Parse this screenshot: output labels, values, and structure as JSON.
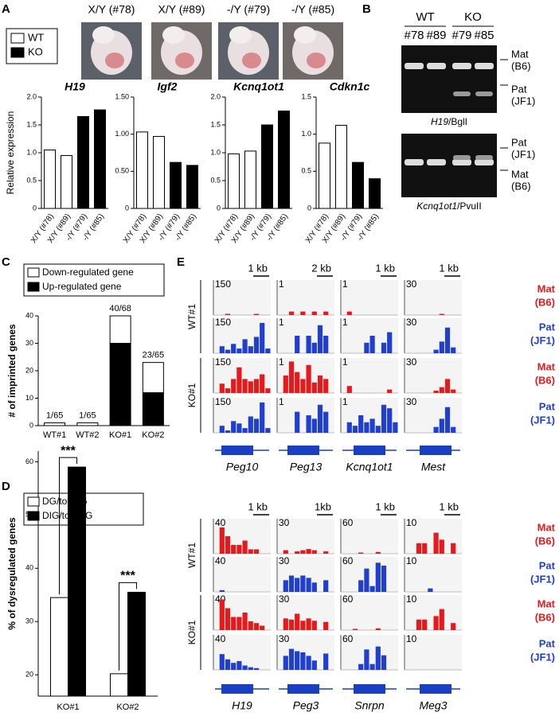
{
  "panel_labels": [
    "A",
    "B",
    "C",
    "D",
    "E"
  ],
  "embryos": [
    "X/Y (#78)",
    "X/Y (#89)",
    "-/Y (#79)",
    "-/Y (#85)"
  ],
  "legend_a": [
    {
      "name": "WT",
      "color": "#ffffff"
    },
    {
      "name": "KO",
      "color": "#000000"
    }
  ],
  "chart_data": [
    {
      "type": "bar",
      "title": "H19",
      "ylabel": "Relative expression",
      "categories": [
        "X/Y (#78)",
        "X/Y (#89)",
        "-/Y (#79)",
        "-/Y (#85)"
      ],
      "values": [
        1.05,
        0.95,
        1.65,
        1.77
      ],
      "colors": [
        "#ffffff",
        "#ffffff",
        "#000000",
        "#000000"
      ],
      "ylim": [
        0,
        2
      ],
      "yticks": [
        0,
        0.5,
        {
          "value": 1,
          "label": "1.0"
        },
        1.5,
        {
          "value": 2,
          "label": "2.0"
        }
      ]
    },
    {
      "type": "bar",
      "title": "Igf2",
      "categories": [
        "X/Y (#78)",
        "X/Y (#89)",
        "-/Y (#79)",
        "-/Y (#85)"
      ],
      "values": [
        1.03,
        0.97,
        0.62,
        0.58
      ],
      "colors": [
        "#ffffff",
        "#ffffff",
        "#000000",
        "#000000"
      ],
      "ylim": [
        0,
        1.5
      ],
      "yticks": [
        0,
        {
          "value": 0.5,
          "label": "0.50"
        },
        {
          "value": 1,
          "label": "1.00"
        },
        {
          "value": 1.5,
          "label": "1.50"
        }
      ]
    },
    {
      "type": "bar",
      "title": "Kcnq1ot1",
      "categories": [
        "X/Y (#78)",
        "X/Y (#89)",
        "-/Y (#79)",
        "-/Y (#85)"
      ],
      "values": [
        0.98,
        1.03,
        1.5,
        1.75
      ],
      "colors": [
        "#ffffff",
        "#ffffff",
        "#000000",
        "#000000"
      ],
      "ylim": [
        0,
        2
      ],
      "yticks": [
        0,
        0.5,
        {
          "value": 1,
          "label": "1.0"
        },
        1.5,
        {
          "value": 2,
          "label": "2.0"
        }
      ]
    },
    {
      "type": "bar",
      "title": "Cdkn1c",
      "categories": [
        "X/Y (#78)",
        "X/Y (#89)",
        "-/Y (#79)",
        "-/Y (#85)"
      ],
      "values": [
        0.88,
        1.12,
        0.62,
        0.4
      ],
      "colors": [
        "#ffffff",
        "#ffffff",
        "#000000",
        "#000000"
      ],
      "ylim": [
        0,
        1.5
      ],
      "yticks": [
        0,
        0.5,
        {
          "value": 1,
          "label": "1.0"
        },
        1.5
      ]
    },
    {
      "type": "stacked_bar",
      "ylabel": "# of imprinted genes",
      "categories": [
        "WT#1",
        "WT#2",
        "KO#1",
        "KO#2"
      ],
      "series": [
        {
          "name": "Up-regulated gene",
          "color": "#000000",
          "values": [
            0,
            0,
            30,
            12
          ]
        },
        {
          "name": "Down-regulated gene",
          "color": "#ffffff",
          "values": [
            1,
            1,
            10,
            11
          ]
        }
      ],
      "annotations": [
        "1/65",
        "1/65",
        "40/68",
        "23/65"
      ],
      "ylim": [
        0,
        40
      ],
      "yticks": [
        0,
        10,
        20,
        30,
        40
      ]
    },
    {
      "type": "grouped_bar",
      "ylabel": "% of dysregulated genes",
      "categories": [
        "KO#1",
        "KO#2"
      ],
      "series": [
        {
          "name": "DG/total G",
          "color": "#ffffff",
          "values": [
            34.5,
            20.2
          ]
        },
        {
          "name": "DIG/total IG",
          "color": "#000000",
          "values": [
            59,
            35.5
          ]
        }
      ],
      "annotations": [
        "***",
        "***"
      ],
      "ylim": [
        16,
        62
      ],
      "yticks": [
        20,
        30,
        40,
        50,
        60
      ]
    }
  ],
  "gel": {
    "groups": [
      "WT",
      "KO"
    ],
    "lanes": [
      "#78",
      "#89",
      "#79",
      "#85"
    ],
    "blots": [
      {
        "gene": "H19",
        "enzyme": "/BglI",
        "markers": [
          [
            "Mat",
            "(B6)"
          ],
          [
            "Pat",
            "(JF1)"
          ]
        ]
      },
      {
        "gene": "Kcnq1ot1",
        "enzyme": "/PvuII",
        "markers": [
          [
            "Pat",
            "(JF1)"
          ],
          [
            "Mat",
            "(B6)"
          ]
        ]
      }
    ]
  },
  "genome_tracks": {
    "track_types": [
      {
        "lines": [
          "Mat",
          "(B6)"
        ],
        "color": "#e41a1c"
      },
      {
        "lines": [
          "Pat",
          "(JF1)"
        ],
        "color": "#1f3fcc"
      }
    ],
    "samples": [
      "WT#1",
      "KO#1"
    ],
    "blocks": [
      {
        "genes": [
          {
            "name": "Peg10",
            "scale": "1 kb",
            "ymax": 150,
            "coverage": [
              [
                0,
                0,
                5,
                0,
                0,
                0,
                0,
                5,
                0,
                0
              ],
              [
                0,
                30,
                15,
                40,
                20,
                60,
                30,
                70,
                130,
                20
              ],
              [
                0,
                40,
                20,
                60,
                110,
                60,
                50,
                60,
                80,
                20
              ],
              [
                0,
                30,
                10,
                50,
                40,
                20,
                70,
                60,
                130,
                20
              ]
            ]
          },
          {
            "name": "Peg13",
            "scale": "2 kb",
            "ymax": 1,
            "coverage": [
              [
                0,
                0,
                0.1,
                0,
                0.1,
                0,
                0.1,
                0,
                0.1,
                0
              ],
              [
                0,
                0,
                0,
                0.5,
                0,
                0.5,
                0.3,
                0.8,
                0.5,
                0
              ],
              [
                0,
                0.5,
                0.9,
                0.6,
                0.4,
                0.8,
                0.3,
                0.5,
                0.4,
                0
              ],
              [
                0,
                0,
                0,
                0.6,
                0,
                0.5,
                0.4,
                0.8,
                0.6,
                0
              ]
            ]
          },
          {
            "name": "Kcnq1ot1",
            "scale": "1 kb",
            "ymax": 1,
            "coverage": [
              [
                0,
                0.1,
                0,
                0,
                0,
                0,
                0,
                0,
                0,
                0
              ],
              [
                0,
                0,
                0,
                0,
                0.3,
                0.5,
                0,
                0.3,
                0.6,
                0
              ],
              [
                0,
                0.2,
                0,
                0,
                0,
                0,
                0,
                0,
                0.1,
                0
              ],
              [
                0,
                0.3,
                0.2,
                0.5,
                0.3,
                0.4,
                0.2,
                0.8,
                0.7,
                0.3
              ]
            ]
          },
          {
            "name": "Mest",
            "scale": "1 kb",
            "ymax": 30,
            "coverage": [
              [
                0,
                0,
                0,
                0,
                0,
                0,
                1,
                0,
                0,
                0
              ],
              [
                0,
                0,
                0,
                0,
                0,
                3,
                10,
                22,
                5,
                0
              ],
              [
                0,
                0,
                0,
                0,
                0,
                2,
                5,
                12,
                3,
                0
              ],
              [
                0,
                0,
                0,
                0,
                0,
                5,
                12,
                22,
                5,
                0
              ]
            ]
          }
        ]
      },
      {
        "genes": [
          {
            "name": "H19",
            "scale": "1 kb",
            "ymax": 40,
            "coverage": [
              [
                0,
                30,
                20,
                10,
                10,
                15,
                5,
                5,
                0,
                0
              ],
              [
                0,
                2,
                0,
                0,
                0,
                0,
                0,
                0,
                0,
                0
              ],
              [
                0,
                35,
                25,
                15,
                15,
                20,
                10,
                8,
                5,
                0
              ],
              [
                0,
                18,
                12,
                8,
                10,
                5,
                3,
                2,
                0,
                0
              ]
            ]
          },
          {
            "name": "Peg3",
            "scale": "1kb",
            "ymax": 30,
            "coverage": [
              [
                0,
                3,
                0,
                2,
                3,
                4,
                3,
                0,
                2,
                0
              ],
              [
                0,
                10,
                14,
                12,
                14,
                12,
                8,
                0,
                10,
                0
              ],
              [
                0,
                10,
                9,
                14,
                8,
                10,
                8,
                0,
                7,
                0
              ],
              [
                0,
                12,
                18,
                16,
                15,
                12,
                8,
                0,
                14,
                0
              ]
            ]
          },
          {
            "name": "Snrpn",
            "scale": "1 kb",
            "ymax": 60,
            "coverage": [
              [
                0,
                0,
                0,
                2,
                0,
                0,
                3,
                0,
                0,
                0
              ],
              [
                0,
                0,
                0,
                20,
                40,
                10,
                50,
                45,
                0,
                0
              ],
              [
                0,
                0,
                2,
                0,
                0,
                0,
                3,
                0,
                0,
                0
              ],
              [
                0,
                0,
                0,
                10,
                35,
                10,
                40,
                25,
                0,
                0
              ]
            ]
          },
          {
            "name": "Meg3",
            "scale": "1 kb",
            "ymax": 10,
            "coverage": [
              [
                0,
                0,
                3,
                3,
                0,
                6,
                4,
                0,
                3,
                0
              ],
              [
                0,
                0,
                0,
                0,
                1,
                0,
                0,
                0,
                0,
                0
              ],
              [
                0,
                0,
                3,
                3,
                0,
                4,
                6,
                0,
                2,
                0
              ],
              [
                0,
                0,
                0,
                0,
                0,
                0,
                0,
                0,
                0,
                0
              ]
            ]
          }
        ]
      }
    ]
  }
}
